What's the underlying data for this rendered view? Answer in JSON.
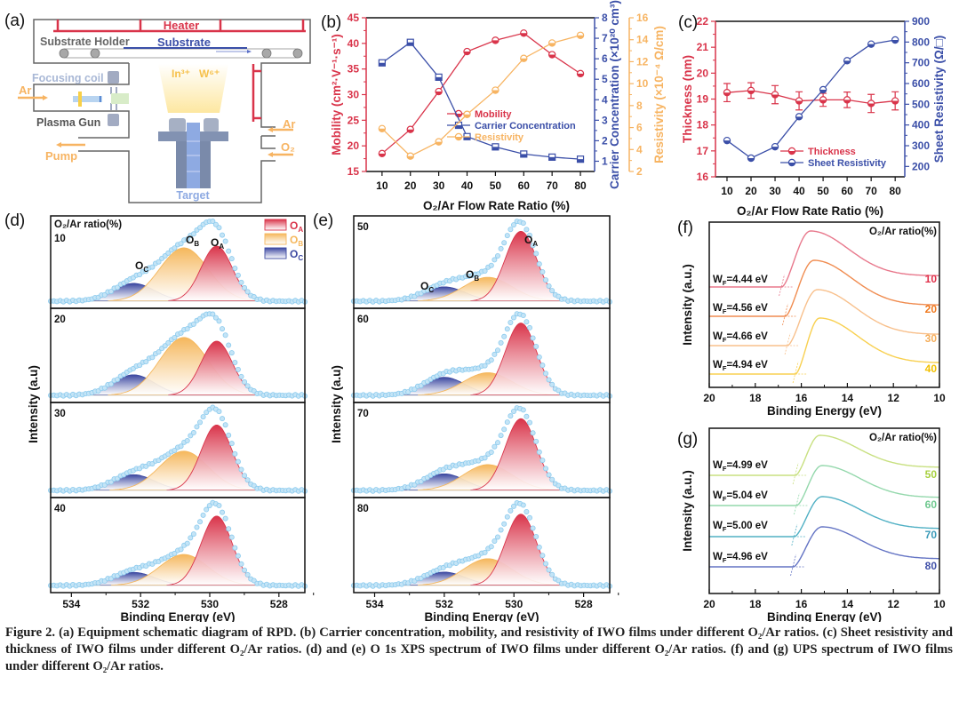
{
  "panel_labels": [
    "(a)",
    "(b)",
    "(c)",
    "(d)",
    "(e)",
    "(f)",
    "(g)"
  ],
  "schematic": {
    "heater": "Heater",
    "substrate_holder": "Substrate Holder",
    "substrate": "Substrate",
    "focusing_coil": "Focusing coil",
    "ar_left": "Ar",
    "plasma_gun": "Plasma Gun",
    "pump": "Pump",
    "ion_in": "In³⁺",
    "ion_w": "W⁶⁺",
    "target": "Target",
    "ar_right": "Ar",
    "o2": "O₂",
    "colors": {
      "heater": "#d9344a",
      "substrate": "#3b4fa8",
      "gas": "#f7b462",
      "coil": "#a9b8d6",
      "wall": "#666666"
    }
  },
  "chart_data": [
    {
      "id": "b",
      "type": "line",
      "xlabel": "O₂/Ar Flow Rate Ratio (%)",
      "x": [
        10,
        20,
        30,
        40,
        50,
        60,
        70,
        80
      ],
      "xlim": [
        4.4,
        85
      ],
      "axes": [
        {
          "label": "Mobility (cm²·V⁻¹·s⁻¹)",
          "ylim": [
            15,
            45
          ],
          "ticks": [
            15,
            20,
            25,
            30,
            35,
            40,
            45
          ],
          "color": "#d9344a",
          "side": "left"
        },
        {
          "label": "Carrier Concentration (×10²⁰ cm³)",
          "ylim": [
            0.5,
            8
          ],
          "ticks": [
            1,
            2,
            3,
            4,
            5,
            6,
            7,
            8
          ],
          "color": "#3b4fa8",
          "side": "right"
        },
        {
          "label": "Resistivity (×10⁻⁴ Ω/cm)",
          "ylim": [
            2,
            16
          ],
          "ticks": [
            2,
            4,
            6,
            8,
            10,
            12,
            14,
            16
          ],
          "color": "#f7b462",
          "side": "right-outer"
        }
      ],
      "series": [
        {
          "name": "Mobility",
          "axis": 0,
          "marker": "circle",
          "values": [
            18.5,
            23.2,
            30.6,
            38.4,
            40.6,
            42.0,
            37.8,
            34.1
          ]
        },
        {
          "name": "Carrier Concentration",
          "axis": 1,
          "marker": "square",
          "values": [
            5.8,
            6.8,
            5.1,
            2.2,
            1.7,
            1.35,
            1.2,
            1.1
          ]
        },
        {
          "name": "Resistivity",
          "axis": 2,
          "marker": "diamond",
          "values": [
            5.9,
            3.4,
            4.7,
            7.2,
            9.4,
            12.3,
            13.7,
            14.4
          ]
        }
      ],
      "legend": "center-right"
    },
    {
      "id": "c",
      "type": "line",
      "xlabel": "O₂/Ar Flow Rate Ratio (%)",
      "x": [
        10,
        20,
        30,
        40,
        50,
        60,
        70,
        80
      ],
      "xlim": [
        5.2,
        84
      ],
      "axes": [
        {
          "label": "Thickness (nm)",
          "ylim": [
            16,
            22
          ],
          "ticks": [
            16,
            17,
            18,
            19,
            20,
            21,
            22
          ],
          "color": "#d9344a",
          "side": "left"
        },
        {
          "label": "Sheet Resistivity (Ω/□)",
          "ylim": [
            150,
            900
          ],
          "ticks": [
            200,
            300,
            400,
            500,
            600,
            700,
            800,
            900
          ],
          "color": "#3b4fa8",
          "side": "right"
        }
      ],
      "series": [
        {
          "name": "Thickness",
          "axis": 0,
          "marker": "circle",
          "values": [
            19.25,
            19.33,
            19.17,
            18.93,
            18.97,
            18.97,
            18.83,
            18.93
          ],
          "errors": [
            0.35,
            0.3,
            0.35,
            0.35,
            0.25,
            0.3,
            0.35,
            0.35
          ]
        },
        {
          "name": "Sheet Resistivity",
          "axis": 1,
          "marker": "circle",
          "values": [
            325,
            240,
            295,
            440,
            570,
            710,
            790,
            810
          ]
        }
      ],
      "legend": "bottom-right"
    },
    {
      "id": "d",
      "type": "area",
      "xlabel": "Binding Energy (eV)",
      "ylabel": "Intensity (a.u)",
      "xlim": [
        534.6,
        527.25
      ],
      "xticks": [
        534,
        532,
        530,
        528
      ],
      "header": "O₂/Ar ratio(%)",
      "components": [
        {
          "name": "O",
          "sub": "A",
          "center": 529.8,
          "sigma": 0.45,
          "color": "#d9344a"
        },
        {
          "name": "O",
          "sub": "B",
          "center": 530.75,
          "sigma": 0.7,
          "color": "#f5b75c"
        },
        {
          "name": "O",
          "sub": "C",
          "center": 532.2,
          "sigma": 0.6,
          "color": "#3b47a0"
        }
      ],
      "spectra": [
        {
          "ratio": "10",
          "heights": [
            0.62,
            0.6,
            0.2
          ]
        },
        {
          "ratio": "20",
          "heights": [
            0.58,
            0.62,
            0.22
          ]
        },
        {
          "ratio": "30",
          "heights": [
            0.75,
            0.45,
            0.18
          ]
        },
        {
          "ratio": "40",
          "heights": [
            0.85,
            0.38,
            0.16
          ]
        }
      ]
    },
    {
      "id": "e",
      "type": "area",
      "xlabel": "Binding Energy (eV)",
      "ylabel": "Intensity (a.u)",
      "xlim": [
        534.6,
        527.25
      ],
      "xticks": [
        534,
        532,
        530,
        528
      ],
      "components": [
        {
          "name": "O",
          "sub": "A",
          "center": 529.8,
          "sigma": 0.45,
          "color": "#d9344a"
        },
        {
          "name": "O",
          "sub": "B",
          "center": 530.75,
          "sigma": 0.7,
          "color": "#f5b75c"
        },
        {
          "name": "O",
          "sub": "C",
          "center": 532.0,
          "sigma": 0.6,
          "color": "#3b47a0"
        }
      ],
      "spectra": [
        {
          "ratio": "50",
          "heights": [
            0.88,
            0.3,
            0.18
          ]
        },
        {
          "ratio": "60",
          "heights": [
            0.8,
            0.25,
            0.2
          ]
        },
        {
          "ratio": "70",
          "heights": [
            0.78,
            0.28,
            0.18
          ]
        },
        {
          "ratio": "80",
          "heights": [
            0.8,
            0.3,
            0.15
          ]
        }
      ]
    },
    {
      "id": "f",
      "type": "line",
      "xlabel": "Binding Energy (eV)",
      "ylabel": "Intensity (a.u.)",
      "xlim": [
        20,
        10
      ],
      "xticks": [
        20,
        18,
        16,
        14,
        12,
        10
      ],
      "header": "O₂/Ar ratio(%)",
      "series": [
        {
          "ratio": "10",
          "wf_prefix": "W",
          "wf_sub": "F",
          "wf_value": "=4.44 eV",
          "cutoff": 16.85,
          "peak": 15.6,
          "color": "#e8788c",
          "label_color": "#e0304a"
        },
        {
          "ratio": "20",
          "wf_prefix": "W",
          "wf_sub": "F",
          "wf_value": "=4.56 eV",
          "cutoff": 16.7,
          "peak": 15.45,
          "color": "#f08c50",
          "label_color": "#f07a20"
        },
        {
          "ratio": "30",
          "wf_prefix": "W",
          "wf_sub": "F",
          "wf_value": "=4.66 eV",
          "cutoff": 16.6,
          "peak": 15.3,
          "color": "#f8c08c",
          "label_color": "#f5ae5c"
        },
        {
          "ratio": "40",
          "wf_prefix": "W",
          "wf_sub": "F",
          "wf_value": "=4.94 eV",
          "cutoff": 16.25,
          "peak": 15.2,
          "color": "#f8d050",
          "label_color": "#f2c000"
        }
      ]
    },
    {
      "id": "g",
      "type": "line",
      "xlabel": "Binding Energy (eV)",
      "ylabel": "Intensity (a.u.)",
      "xlim": [
        20,
        10
      ],
      "xticks": [
        20,
        18,
        16,
        14,
        12,
        10
      ],
      "header": "O₂/Ar ratio(%)",
      "series": [
        {
          "ratio": "50",
          "wf_prefix": "W",
          "wf_sub": "F",
          "wf_value": "=4.99 eV",
          "cutoff": 16.25,
          "peak": 15.2,
          "color": "#c8e080",
          "label_color": "#a8d040"
        },
        {
          "ratio": "60",
          "wf_prefix": "W",
          "wf_sub": "F",
          "wf_value": "=5.04 eV",
          "cutoff": 16.2,
          "peak": 15.1,
          "color": "#94d8ac",
          "label_color": "#70c890"
        },
        {
          "ratio": "70",
          "wf_prefix": "W",
          "wf_sub": "F",
          "wf_value": "=5.00 eV",
          "cutoff": 16.3,
          "peak": 15.1,
          "color": "#50b0c4",
          "label_color": "#3a9ab8"
        },
        {
          "ratio": "80",
          "wf_prefix": "W",
          "wf_sub": "F",
          "wf_value": "=4.96 eV",
          "cutoff": 16.35,
          "peak": 15.1,
          "color": "#6474c4",
          "label_color": "#4050a8"
        }
      ]
    }
  ],
  "caption": {
    "label": "Figure 2.",
    "text": " (a) Equipment schematic diagram of RPD. (b) Carrier concentration, mobility, and resistivity of IWO films under different O₂/Ar ratios. (c) Sheet resistivity and thickness of IWO films under different O₂/Ar ratios. (d) and (e) O 1s XPS spectrum of IWO films under different O₂/Ar ratios. (f) and (g) UPS spectrum of IWO films under different O₂/Ar ratios."
  }
}
